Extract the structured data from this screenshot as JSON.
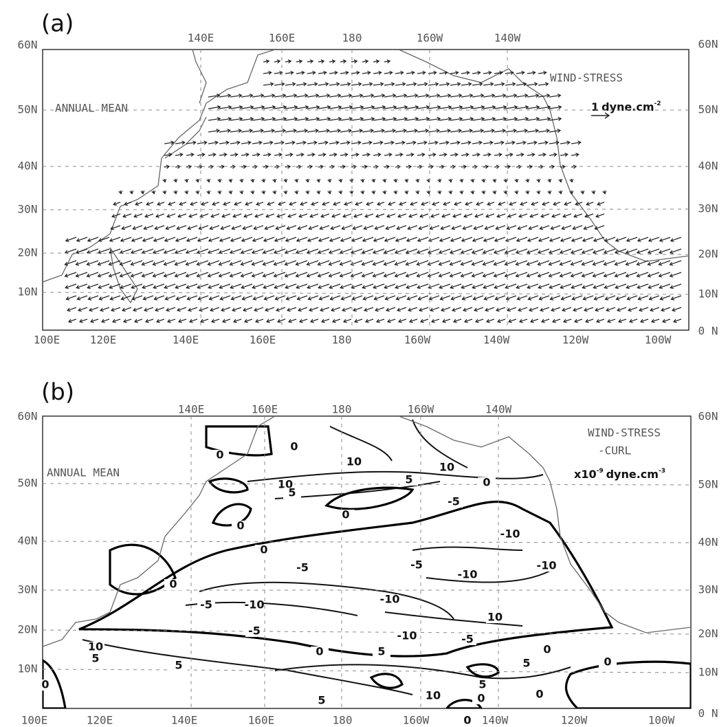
{
  "panels": [
    {
      "label": "(a)",
      "title": "ANNUAL MEAN",
      "field_lines": [
        "WIND-STRESS"
      ],
      "unit_prefix": "1",
      "unit": "dyne.cm",
      "unit_exp": "-2",
      "top_lon_labels": [
        "140E",
        "160E",
        "180",
        "160W",
        "140W"
      ],
      "bottom_lon_labels": [
        "100E",
        "120E",
        "140E",
        "160E",
        "180",
        "160W",
        "140W",
        "120W",
        "100W"
      ],
      "left_lat_labels": [
        "60N",
        "50N",
        "40N",
        "30N",
        "20N",
        "10N"
      ],
      "right_lat_labels": [
        "60N",
        "50N",
        "40N",
        "30N",
        "20N",
        "10N",
        "0 N"
      ]
    },
    {
      "label": "(b)",
      "title": "ANNUAL MEAN",
      "field_lines": [
        "WIND-STRESS",
        "-CURL"
      ],
      "unit_prefix": "x10",
      "unit_exp_pre": "-9",
      "unit": "dyne.cm",
      "unit_exp": "-3",
      "top_lon_labels": [
        "140E",
        "160E",
        "180",
        "160W",
        "140W"
      ],
      "bottom_lon_labels": [
        "100E",
        "120E",
        "140E",
        "160E",
        "180",
        "160W",
        "140W",
        "120W",
        "100W"
      ],
      "left_lat_labels": [
        "60N",
        "50N",
        "40N",
        "30N",
        "20N",
        "10N"
      ],
      "right_lat_labels": [
        "60N",
        "50N",
        "40N",
        "30N",
        "20N",
        "10N",
        "0 N"
      ],
      "contour_labels": [
        "0",
        "10",
        "10",
        "10",
        "5",
        "0",
        "5",
        "0",
        "0",
        "-5",
        "-10",
        "0",
        "0",
        "-5",
        "-5",
        "-10",
        "-10",
        "0",
        "-10",
        "-10",
        "-5",
        "10",
        "-5",
        "-10",
        "-5",
        "0",
        "0",
        "10",
        "5",
        "5",
        "5",
        "5",
        "0",
        "0",
        "10",
        "5",
        "0",
        "0",
        "5",
        "0"
      ]
    }
  ]
}
